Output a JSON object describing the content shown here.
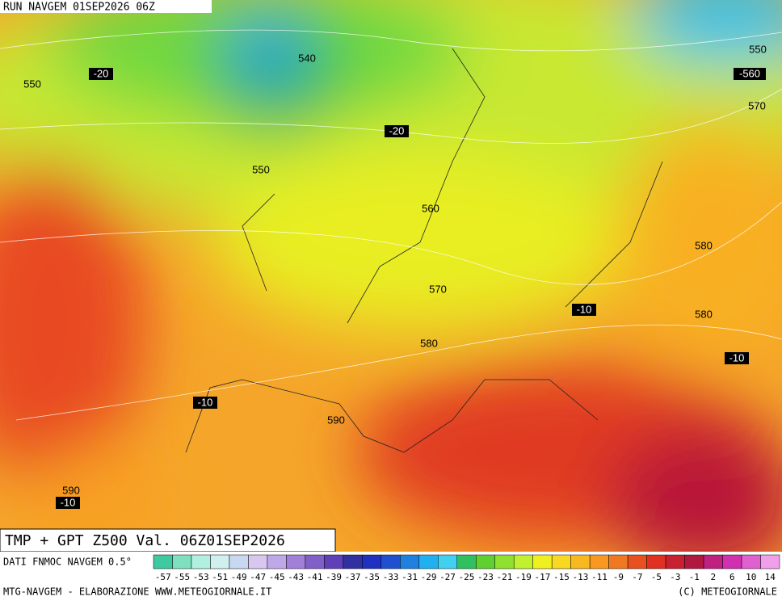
{
  "header": {
    "run": "RUN NAVGEM 01SEP2026 06Z"
  },
  "map": {
    "contour_labels": [
      "540",
      "550",
      "550",
      "560",
      "570",
      "580",
      "580",
      "580",
      "590",
      "590",
      "550",
      "570"
    ],
    "temperature_labels": [
      "-20",
      "-20",
      "-10",
      "-10",
      "-10",
      "-10",
      "-560"
    ]
  },
  "footer": {
    "title": "TMP + GPT Z500 Val. 06Z01SEP2026",
    "source": "DATI FNMOC NAVGEM 0.5°",
    "credit": "MTG-NAVGEM - ELABORAZIONE WWW.METEOGIORNALE.IT",
    "copyright": "(C) METEOGIORNALE"
  },
  "colorbar": {
    "ticks": [
      -57,
      -55,
      -53,
      -51,
      -49,
      -47,
      -45,
      -43,
      -41,
      -39,
      -37,
      -35,
      -33,
      -31,
      -29,
      -27,
      -25,
      -23,
      -21,
      -19,
      -17,
      -15,
      -13,
      -11,
      -9,
      -7,
      -5,
      -3,
      -1,
      2,
      6,
      10,
      14
    ],
    "colors": [
      "#3fc9a0",
      "#7fe0c0",
      "#b0f0e0",
      "#d0f0f0",
      "#c8d8f0",
      "#d8c8f0",
      "#c0a8e8",
      "#a080d8",
      "#8060c8",
      "#6040b8",
      "#3030a0",
      "#2030c0",
      "#2050d0",
      "#2080e0",
      "#20b0f0",
      "#40d0f0",
      "#30c060",
      "#60d030",
      "#90e030",
      "#c0f030",
      "#f0f020",
      "#f8d820",
      "#f8b820",
      "#f89820",
      "#f07820",
      "#e85020",
      "#e03020",
      "#c82030",
      "#b01840",
      "#c02080",
      "#d030b0",
      "#e060d0",
      "#f0a0e8"
    ]
  }
}
